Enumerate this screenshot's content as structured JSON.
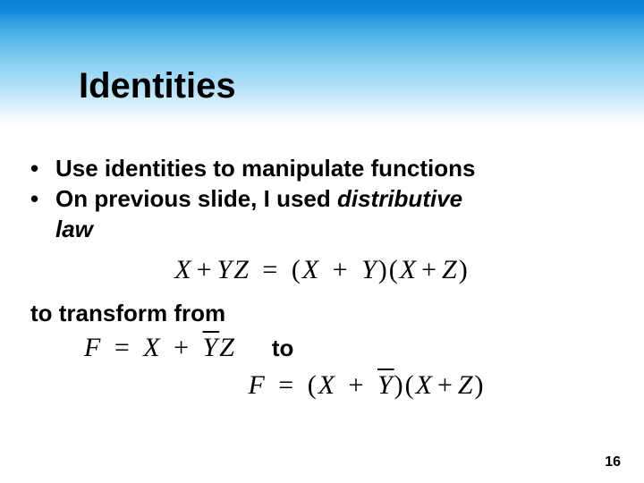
{
  "slide": {
    "title": "Identities",
    "bullets": [
      {
        "text": "Use identities to manipulate functions"
      },
      {
        "prefix": "On previous slide, I used ",
        "em": "distributive",
        "em2": "law"
      }
    ],
    "transform_label": "to transform from",
    "to_label": "to",
    "page_number": "16",
    "colors": {
      "band_top": "#0a7dd4",
      "band_bottom": "#ffffff",
      "text": "#000000",
      "background": "#ffffff"
    },
    "typography": {
      "title_fontsize": 40,
      "body_fontsize": 26,
      "math_fontsize": 30,
      "pagenum_fontsize": 16,
      "font_family": "Verdana",
      "math_font_family": "Georgia"
    },
    "equations": {
      "eq1": {
        "lhs_vars": [
          "X",
          "Y",
          "Z"
        ],
        "lhs": "X + YZ",
        "rhs": "(X + Y)(X + Z)"
      },
      "eq2": {
        "lhs": "F",
        "rhs_vars": [
          "X",
          "Y̅",
          "Z"
        ],
        "raw": "F = X + Y̅Z"
      },
      "eq3": {
        "lhs": "F",
        "raw": "F = (X + Y̅)(X + Z)"
      }
    }
  }
}
